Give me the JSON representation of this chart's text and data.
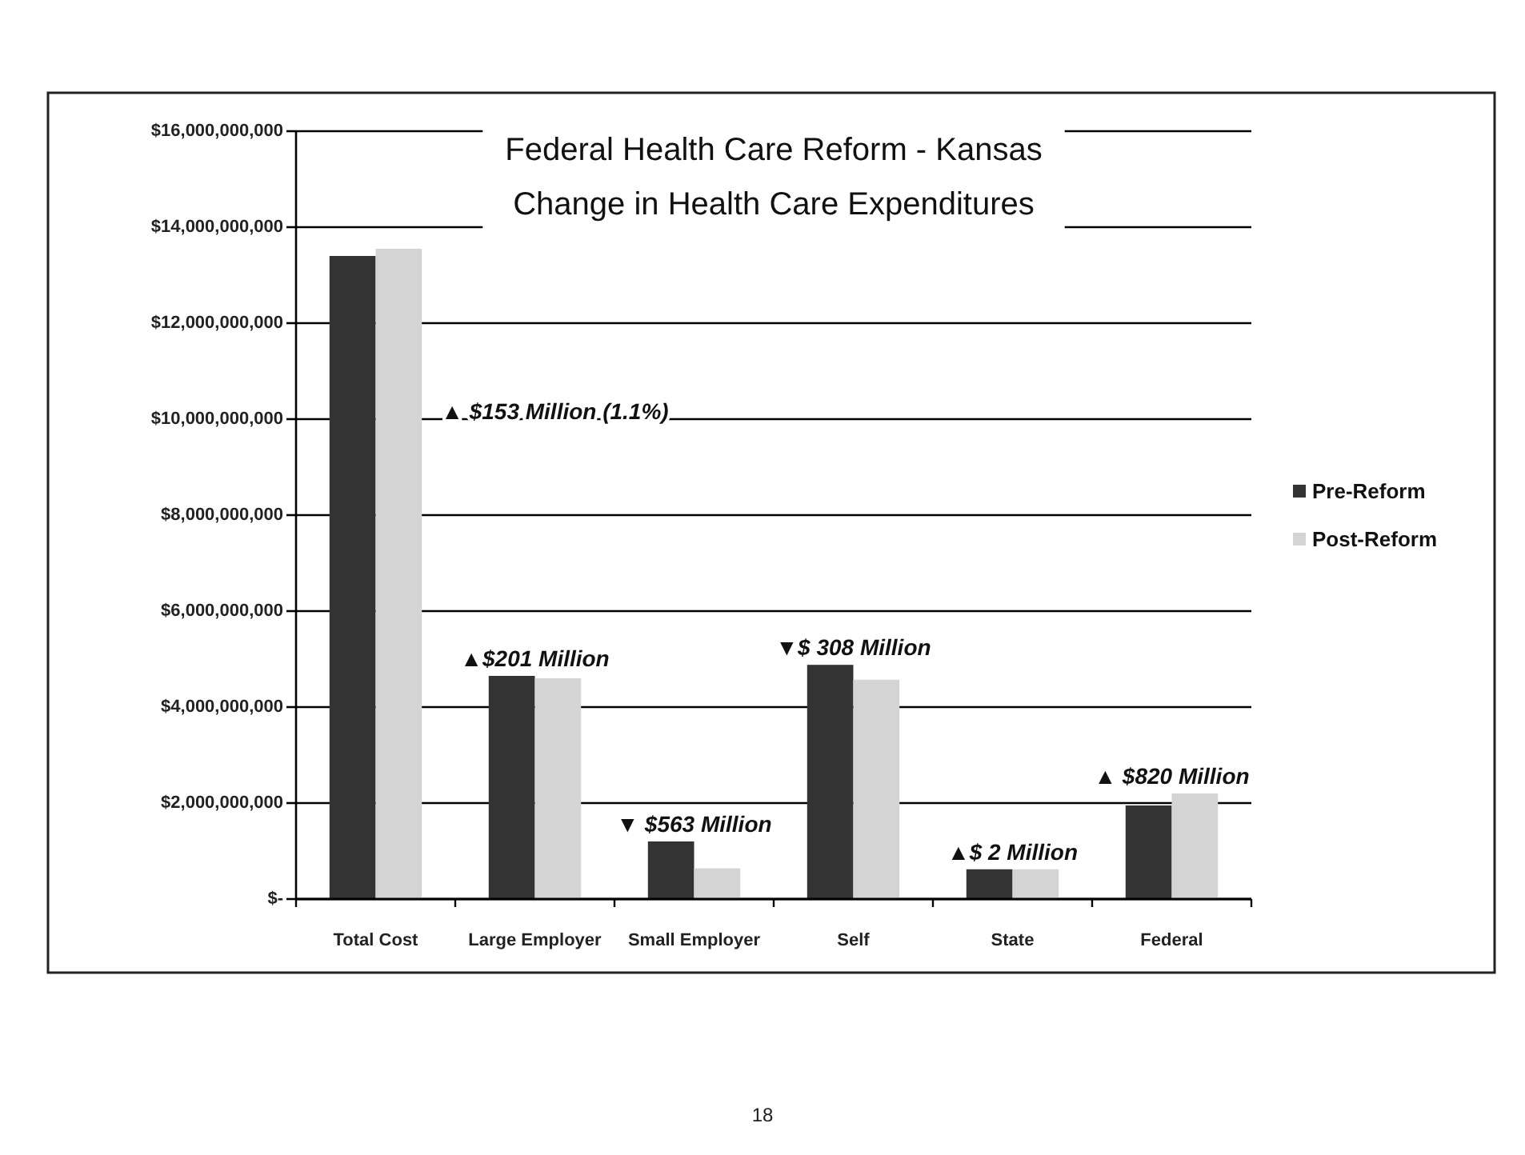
{
  "chart_data": {
    "type": "bar",
    "title": "Federal Health Care Reform - Kansas",
    "subtitle": "Change in Health Care Expenditures",
    "categories": [
      "Total Cost",
      "Large Employer",
      "Small Employer",
      "Self",
      "State",
      "Federal"
    ],
    "series": [
      {
        "name": "Pre-Reform",
        "color": "#333333",
        "values": [
          13400000000,
          4650000000,
          1200000000,
          4880000000,
          620000000,
          1950000000
        ]
      },
      {
        "name": "Post-Reform",
        "color": "#d4d4d4",
        "values": [
          13550000000,
          4600000000,
          640000000,
          4570000000,
          620000000,
          2200000000
        ]
      }
    ],
    "ylim": [
      0,
      16000000000
    ],
    "yticks": [
      {
        "value": 0,
        "label": "$-"
      },
      {
        "value": 2000000000,
        "label": "$2,000,000,000"
      },
      {
        "value": 4000000000,
        "label": "$4,000,000,000"
      },
      {
        "value": 6000000000,
        "label": "$6,000,000,000"
      },
      {
        "value": 8000000000,
        "label": "$8,000,000,000"
      },
      {
        "value": 10000000000,
        "label": "$10,000,000,000"
      },
      {
        "value": 12000000000,
        "label": "$12,000,000,000"
      },
      {
        "value": 14000000000,
        "label": "$14,000,000,000"
      },
      {
        "value": 16000000000,
        "label": "$16,000,000,000"
      }
    ],
    "grid": "y",
    "legend": "right",
    "annotations": [
      "▲ $153 Million (1.1%)",
      "▲$201 Million",
      "▼ $563 Million",
      "▼$ 308 Million",
      "▲$ 2 Million",
      "▲ $820 Million",
      "18"
    ]
  }
}
